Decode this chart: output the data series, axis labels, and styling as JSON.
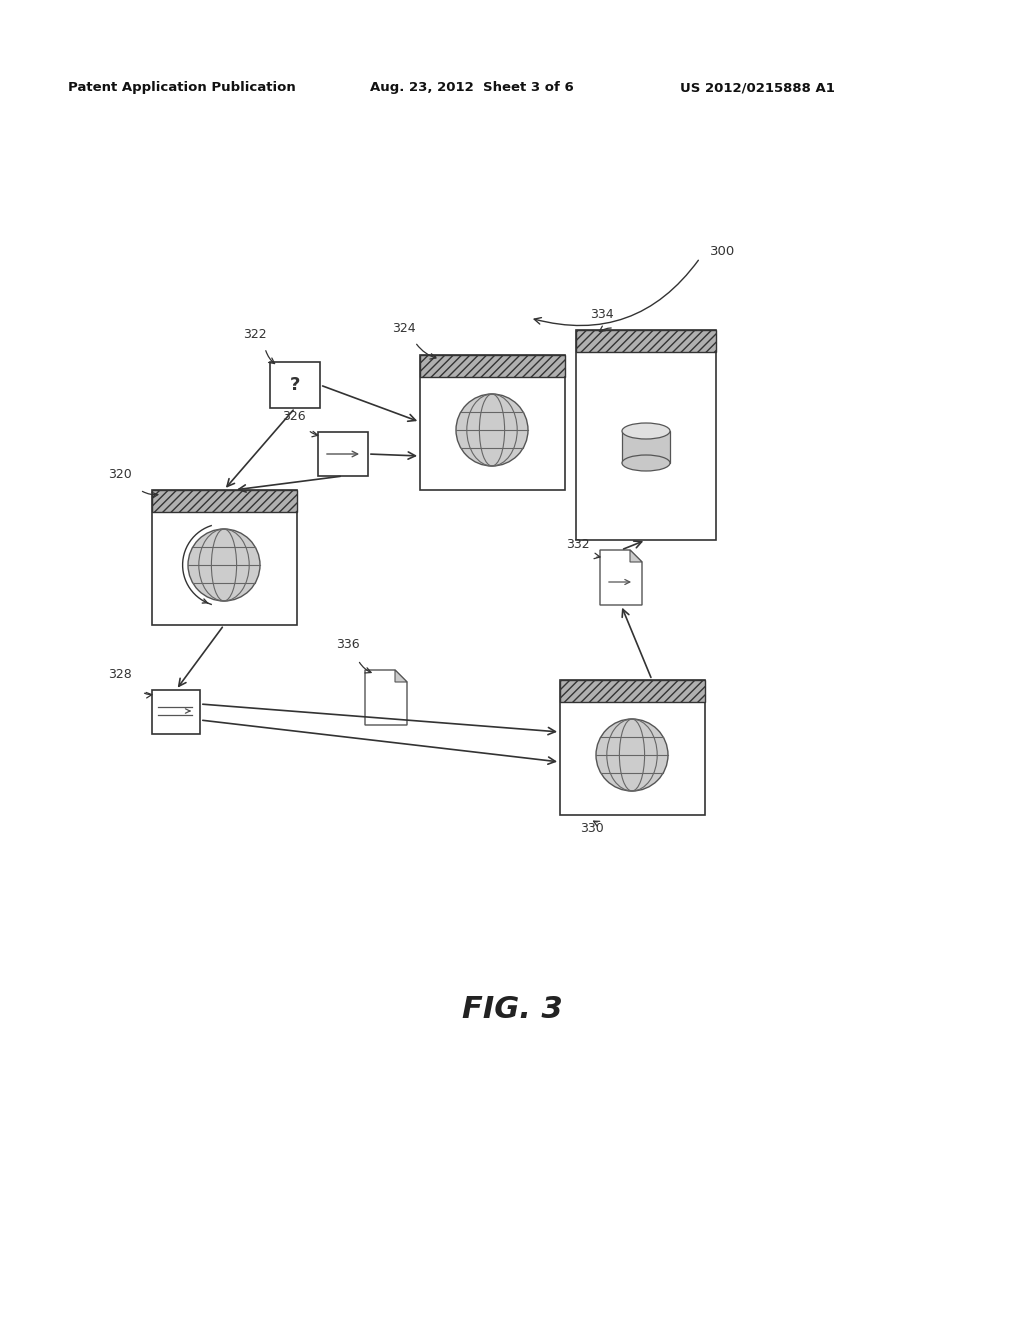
{
  "header_left": "Patent Application Publication",
  "header_mid": "Aug. 23, 2012  Sheet 3 of 6",
  "header_right": "US 2012/0215888 A1",
  "fig_label": "FIG. 3",
  "bg_color": "#ffffff",
  "label_300": "300",
  "label_320": "320",
  "label_322": "322",
  "label_324": "324",
  "label_326": "326",
  "label_328": "328",
  "label_330": "330",
  "label_332": "332",
  "label_334": "334",
  "label_336": "336"
}
